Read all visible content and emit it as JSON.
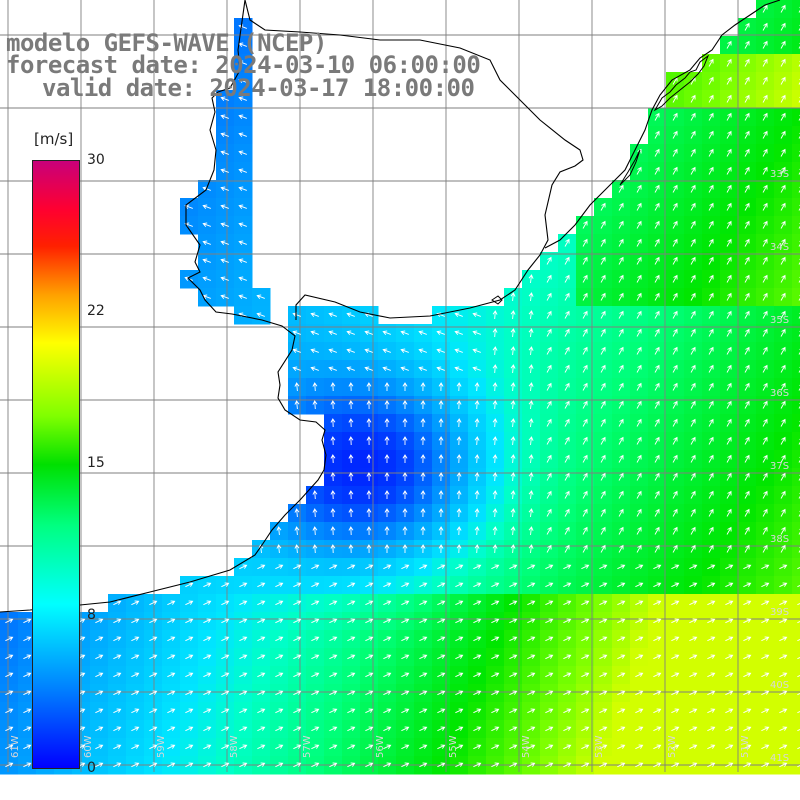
{
  "title": {
    "line1": "modelo GEFS-WAVE (NCEP)",
    "line2": "forecast date: 2024-03-10 06:00:00",
    "line3": "valid date: 2024-03-17 18:00:00"
  },
  "colorbar": {
    "unit": "[m/s]",
    "ticks": [
      "30",
      "22",
      "15",
      "8",
      "0"
    ],
    "colors": [
      "#0000ff",
      "#00a0ff",
      "#00ffff",
      "#00ff80",
      "#00e000",
      "#80ff00",
      "#ffff00",
      "#ffa000",
      "#ff3000",
      "#ff0000",
      "#e0007a",
      "#c8007a"
    ]
  },
  "lat_labels": [
    "33S",
    "34S",
    "35S",
    "36S",
    "37S",
    "38S",
    "39S",
    "40S",
    "41S"
  ],
  "lon_labels": [
    "61W",
    "60W",
    "59W",
    "58W",
    "57W",
    "56W",
    "55W",
    "54W",
    "53W",
    "52W",
    "51W"
  ],
  "colors": {
    "land": "#ffffff",
    "grid": "#7f7f7f",
    "coast": "#000000",
    "arrow": "#ffffff"
  }
}
